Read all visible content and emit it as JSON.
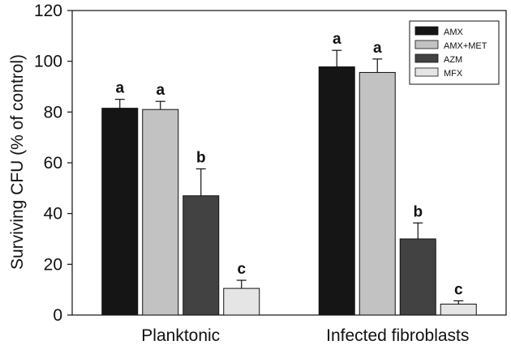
{
  "chart_data": {
    "type": "bar",
    "title": "",
    "xlabel": "",
    "ylabel": "Surviving CFU (% of control)",
    "ylim": [
      0,
      120
    ],
    "yticks": [
      0,
      20,
      40,
      60,
      80,
      100,
      120
    ],
    "grid": false,
    "legend_position": "top-right",
    "categories": [
      "Planktonic",
      "Infected fibroblasts"
    ],
    "series": [
      {
        "name": "AMX",
        "color": "#151515",
        "values": [
          81.5,
          97.8
        ],
        "errors": [
          3.5,
          6.5
        ],
        "labels": [
          "a",
          "a"
        ]
      },
      {
        "name": "AMX+MET",
        "color": "#c2c2c2",
        "values": [
          81.0,
          95.6
        ],
        "errors": [
          3.2,
          5.3
        ],
        "labels": [
          "a",
          "a"
        ]
      },
      {
        "name": "AZM",
        "color": "#424242",
        "values": [
          47.0,
          30.0
        ],
        "errors": [
          10.6,
          6.3
        ],
        "labels": [
          "b",
          "b"
        ]
      },
      {
        "name": "MFX",
        "color": "#e5e5e5",
        "values": [
          10.5,
          4.3
        ],
        "errors": [
          3.2,
          1.3
        ],
        "labels": [
          "c",
          "c"
        ]
      }
    ]
  }
}
